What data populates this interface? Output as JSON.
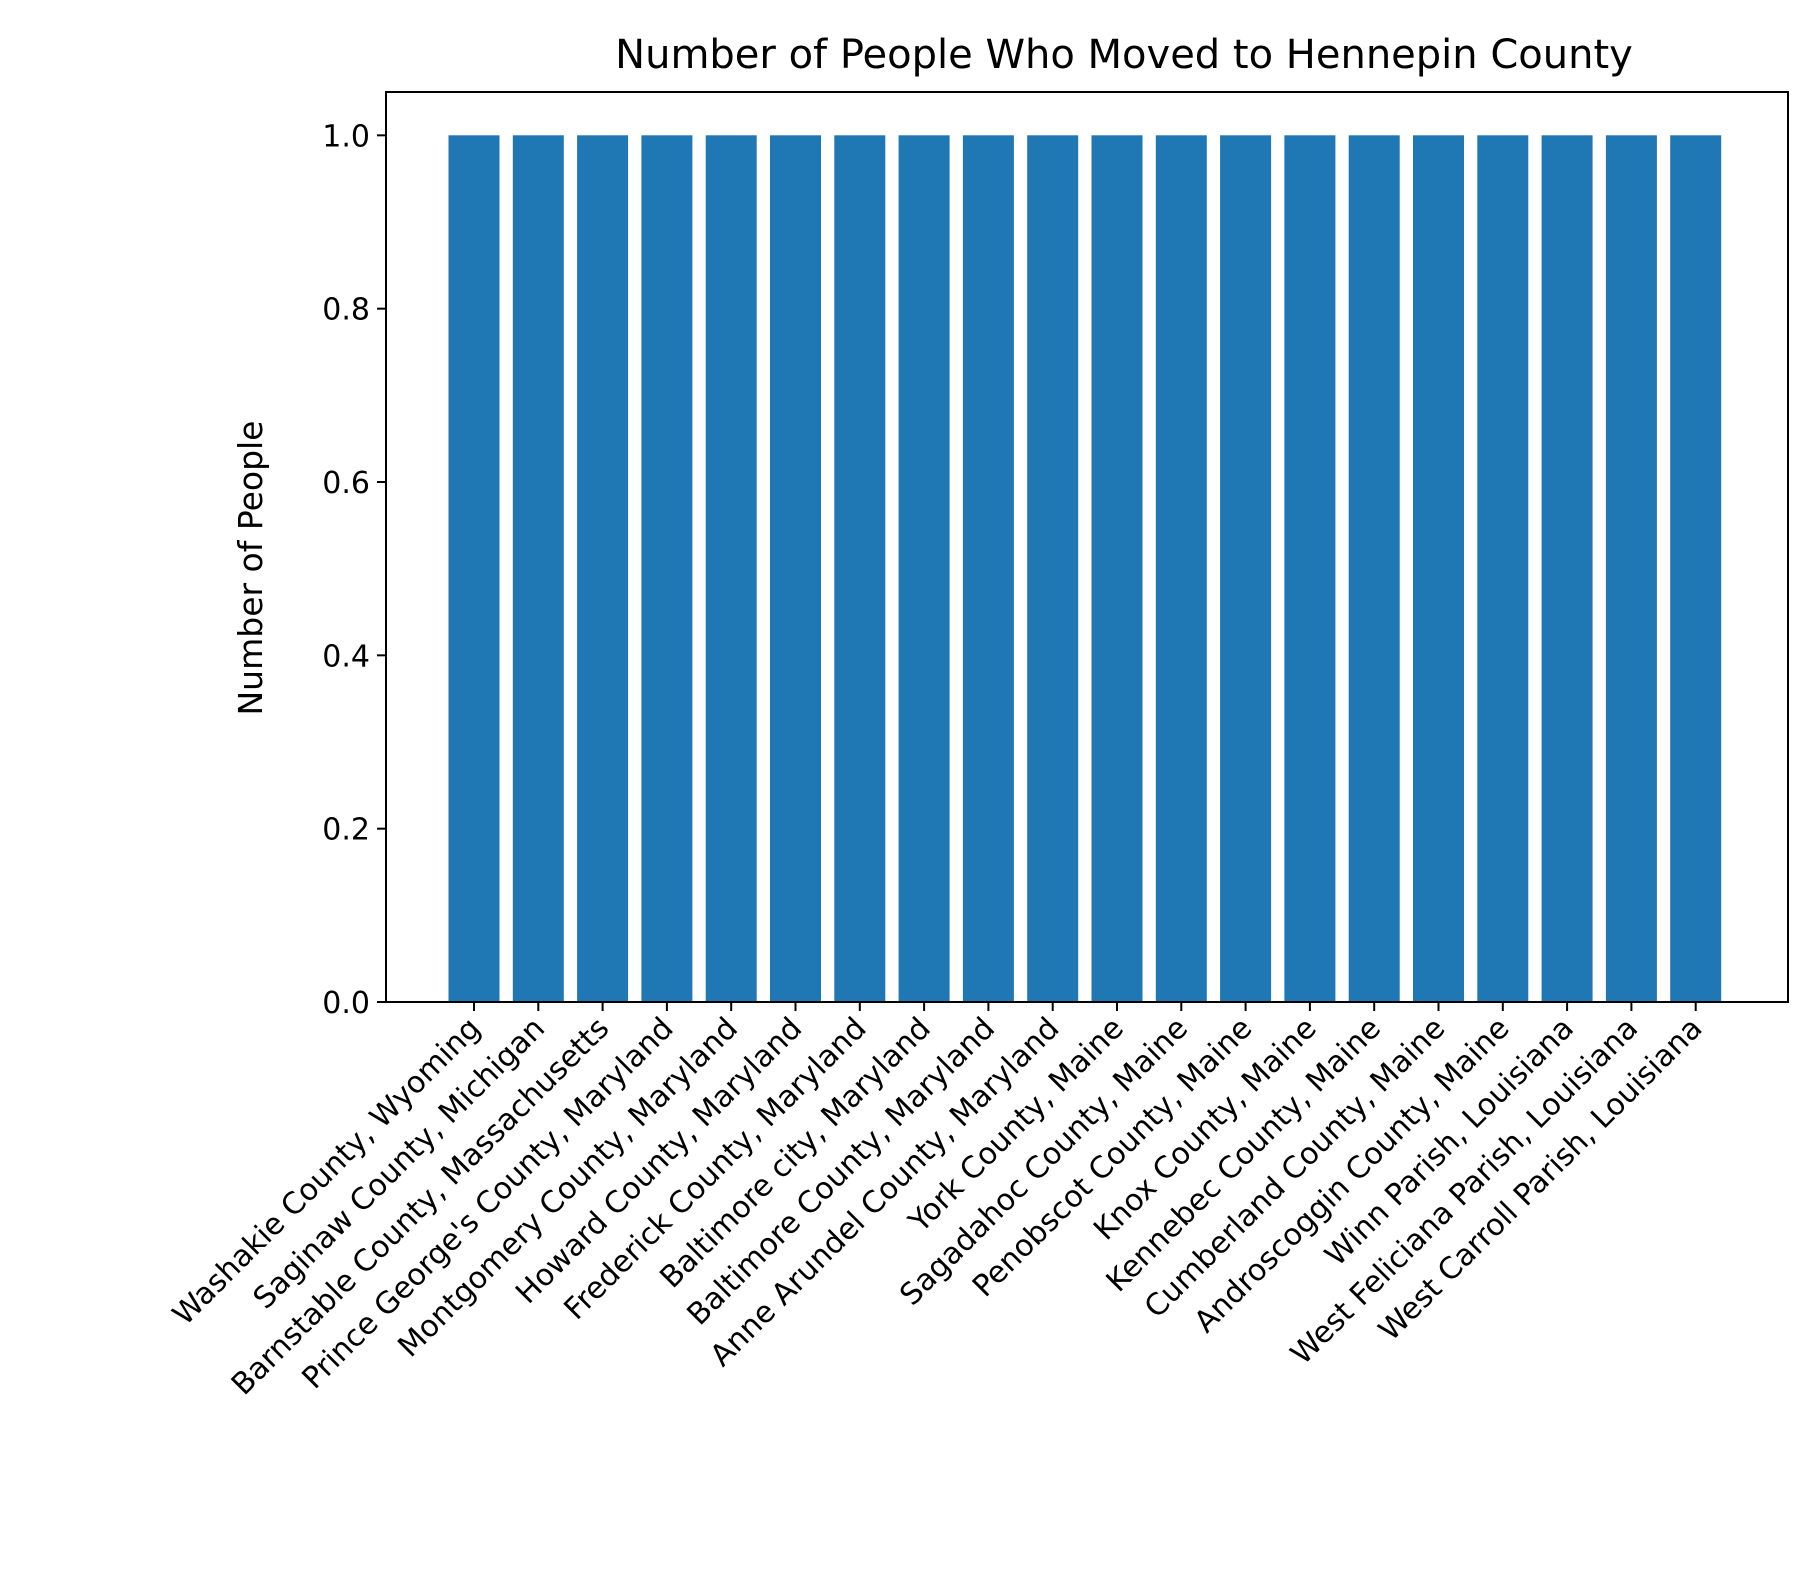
{
  "chart_data": {
    "type": "bar",
    "title": "Number of People Who Moved to Hennepin County",
    "xlabel": "",
    "ylabel": "Number of People",
    "ylim": [
      0,
      1.05
    ],
    "yticks": [
      "0.0",
      "0.2",
      "0.4",
      "0.6",
      "0.8",
      "1.0"
    ],
    "grid": false,
    "bar_color": "#1f77b4",
    "categories": [
      "Washakie County, Wyoming",
      "Saginaw County, Michigan",
      "Barnstable County, Massachusetts",
      "Prince George's County, Maryland",
      "Montgomery County, Maryland",
      "Howard County, Maryland",
      "Frederick County, Maryland",
      "Baltimore city, Maryland",
      "Baltimore County, Maryland",
      "Anne Arundel County, Maryland",
      "York County, Maine",
      "Sagadahoc County, Maine",
      "Penobscot County, Maine",
      "Knox County, Maine",
      "Kennebec County, Maine",
      "Cumberland County, Maine",
      "Androscoggin County, Maine",
      "Winn Parish, Louisiana",
      "West Feliciana Parish, Louisiana",
      "West Carroll Parish, Louisiana"
    ],
    "values": [
      1,
      1,
      1,
      1,
      1,
      1,
      1,
      1,
      1,
      1,
      1,
      1,
      1,
      1,
      1,
      1,
      1,
      1,
      1,
      1
    ]
  }
}
